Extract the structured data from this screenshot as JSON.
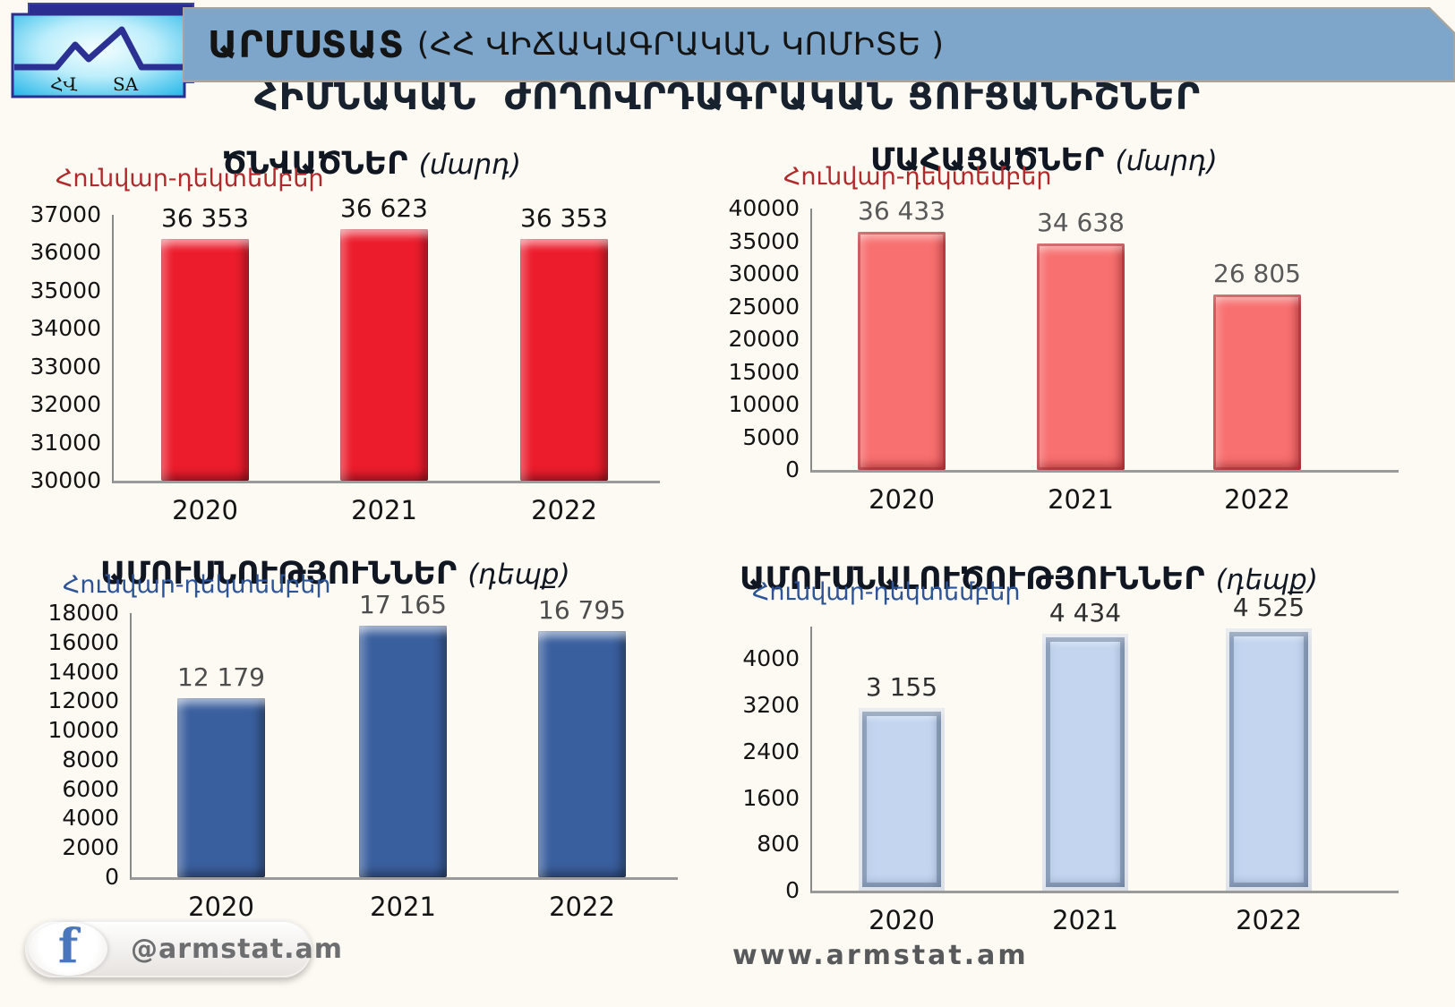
{
  "header": {
    "banner_title_main": "ԱՐՄՍՏԱՏ",
    "banner_title_rest": "(ՀՀ ՎԻՃԱԿԱԳՐԱԿԱՆ ԿՈՄԻՏԵ )",
    "main_title": "ՀԻՄՆԱԿԱՆ  ԺՈՂՈՎՐԴԱԳՐԱԿԱՆ ՑՈՒՑԱՆԻՇՆԵՐ",
    "logo_left": "ՀՎ",
    "logo_right": "SA"
  },
  "footer": {
    "facebook_icon": "facebook-f-icon",
    "facebook_handle": "@armstat.am",
    "website": "www.armstat.am"
  },
  "colors": {
    "page_bg": "#fdfaf3",
    "banner_bg": "#7da6ca",
    "logo_navy": "#2b2d90",
    "births_bar": "#ec1c2c",
    "deaths_bar": "#f87070",
    "marriages_bar": "#3a5f9e",
    "divorces_bar": "#c3d5ef",
    "period_red": "#b02a2b",
    "period_blue": "#2f5496",
    "facebook_blue": "#4a76bd"
  },
  "chart_data": [
    {
      "type": "bar",
      "title": "ԾՆՎԱԾՆԵՐ",
      "unit_label": "(մարդ)",
      "period_label": "Հունվար-դեկտեմբեր",
      "period_color": "#b02a2b",
      "categories": [
        "2020",
        "2021",
        "2022"
      ],
      "values": [
        36353,
        36623,
        36353
      ],
      "value_labels": [
        "36 353",
        "36 623",
        "36 353"
      ],
      "yticks": [
        30000,
        31000,
        32000,
        33000,
        34000,
        35000,
        36000,
        37000
      ],
      "ylim": [
        30000,
        37000
      ],
      "grid": false,
      "legend": "none",
      "bar_color": "#ec1c2c",
      "value_label_color": "#141414"
    },
    {
      "type": "bar",
      "title": "ՄԱՀԱՑԱԾՆԵՐ",
      "unit_label": "(մարդ)",
      "period_label": "Հունվար-դեկտեմբեր",
      "period_color": "#b02a2b",
      "categories": [
        "2020",
        "2021",
        "2022"
      ],
      "values": [
        36433,
        34638,
        26805
      ],
      "value_labels": [
        "36 433",
        "34 638",
        "26 805"
      ],
      "yticks": [
        0,
        5000,
        10000,
        15000,
        20000,
        25000,
        30000,
        35000,
        40000
      ],
      "ylim": [
        0,
        40000
      ],
      "grid": false,
      "legend": "none",
      "bar_color": "#f87070",
      "value_label_color": "#595959"
    },
    {
      "type": "bar",
      "title": "ԱՄՈՒՍՆՈՒԹՅՈՒՆՆԵՐ",
      "unit_label": "(դեպք)",
      "period_label": "Հունվար-դեկտեմբեր",
      "period_color": "#2f5496",
      "categories": [
        "2020",
        "2021",
        "2022"
      ],
      "values": [
        12179,
        17165,
        16795
      ],
      "value_labels": [
        "12 179",
        "17 165",
        "16 795"
      ],
      "yticks": [
        0,
        2000,
        4000,
        6000,
        8000,
        10000,
        12000,
        14000,
        16000,
        18000
      ],
      "ylim": [
        0,
        18000
      ],
      "grid": false,
      "legend": "none",
      "bar_color": "#3a5f9e",
      "value_label_color": "#4d4d4d"
    },
    {
      "type": "bar",
      "title": "ԱՄՈՒՍՆԱԼՈՒԾՈՒԹՅՈՒՆՆԵՐ",
      "unit_label": "(դեպք)",
      "period_label": "Հունվար-դեկտեմբեր",
      "period_color": "#2f5496",
      "categories": [
        "2020",
        "2021",
        "2022"
      ],
      "values": [
        3155,
        4434,
        4525
      ],
      "value_labels": [
        "3 155",
        "4 434",
        "4 525"
      ],
      "yticks": [
        0,
        800,
        1600,
        2400,
        3200,
        4000
      ],
      "ylim": [
        0,
        4560
      ],
      "grid": false,
      "legend": "none",
      "bar_color": "#c3d5ef",
      "value_label_color": "#2f2f2f"
    }
  ]
}
